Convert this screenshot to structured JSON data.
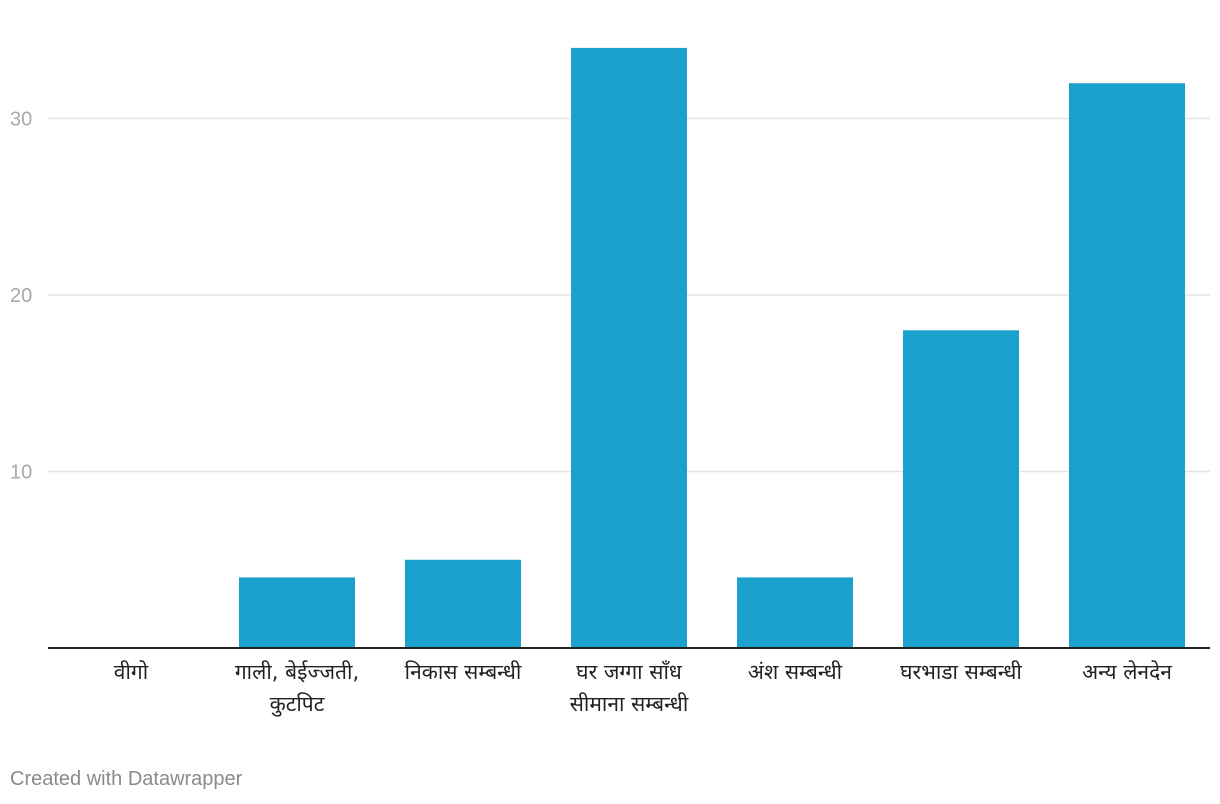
{
  "chart_data": {
    "type": "bar",
    "categories": [
      "वीगो",
      "गाली, बेईज्जती, कुटपिट",
      "निकास सम्बन्धी",
      "घर जग्गा साँध सीमाना सम्बन्धी",
      "अंश सम्बन्धी",
      "घरभाडा सम्बन्धी",
      "अन्य लेनदेन"
    ],
    "category_lines": [
      [
        "वीगो"
      ],
      [
        "गाली, बेईज्जती,",
        "कुटपिट"
      ],
      [
        "निकास सम्बन्धी"
      ],
      [
        "घर जग्गा साँध",
        "सीमाना सम्बन्धी"
      ],
      [
        "अंश सम्बन्धी"
      ],
      [
        "घरभाडा सम्बन्धी"
      ],
      [
        "अन्य लेनदेन"
      ]
    ],
    "values": [
      0,
      4,
      5,
      34,
      4,
      18,
      32
    ],
    "y_ticks": [
      10,
      20,
      30
    ],
    "ylim": [
      0,
      35
    ],
    "grid": true,
    "bar_color": "#1ba1ce",
    "gridline_color": "#e3e3e3",
    "axis_color": "#222222"
  },
  "footer": {
    "credit": "Created with Datawrapper"
  }
}
